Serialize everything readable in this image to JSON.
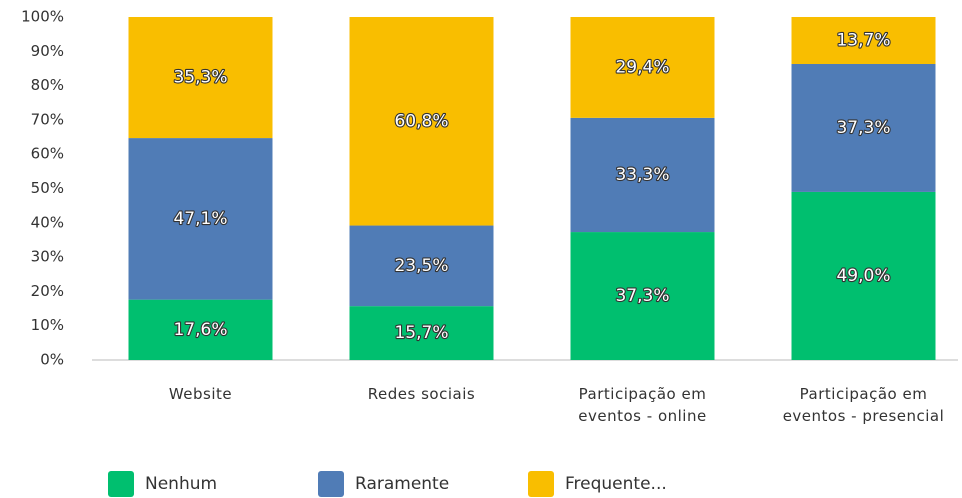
{
  "chart_data": {
    "type": "stacked-bar",
    "categories": [
      "Website",
      "Redes sociais",
      "Participação em eventos - online",
      "Participação em eventos - presencial"
    ],
    "series": [
      {
        "name": "Nenhum",
        "color": "#00bf6f",
        "values": [
          17.6,
          15.7,
          37.3,
          49.0
        ],
        "value_labels": [
          "17,6%",
          "15,7%",
          "37,3%",
          "49,0%"
        ]
      },
      {
        "name": "Raramente",
        "color": "#507cb6",
        "values": [
          47.1,
          23.5,
          33.3,
          37.3
        ],
        "value_labels": [
          "47,1%",
          "23,5%",
          "33,3%",
          "37,3%"
        ]
      },
      {
        "name": "Frequente...",
        "color": "#f9be00",
        "values": [
          35.3,
          60.8,
          29.4,
          13.7
        ],
        "value_labels": [
          "35,3%",
          "60,8%",
          "29,4%",
          "13,7%"
        ]
      }
    ],
    "ylim": [
      0,
      100
    ],
    "yticks": [
      {
        "value": 0,
        "label": "0%"
      },
      {
        "value": 10,
        "label": "10%"
      },
      {
        "value": 20,
        "label": "20%"
      },
      {
        "value": 30,
        "label": "30%"
      },
      {
        "value": 40,
        "label": "40%"
      },
      {
        "value": 50,
        "label": "50%"
      },
      {
        "value": 60,
        "label": "60%"
      },
      {
        "value": 70,
        "label": "70%"
      },
      {
        "value": 80,
        "label": "80%"
      },
      {
        "value": 90,
        "label": "90%"
      },
      {
        "value": 100,
        "label": "100%"
      }
    ],
    "legend": "bottom"
  }
}
